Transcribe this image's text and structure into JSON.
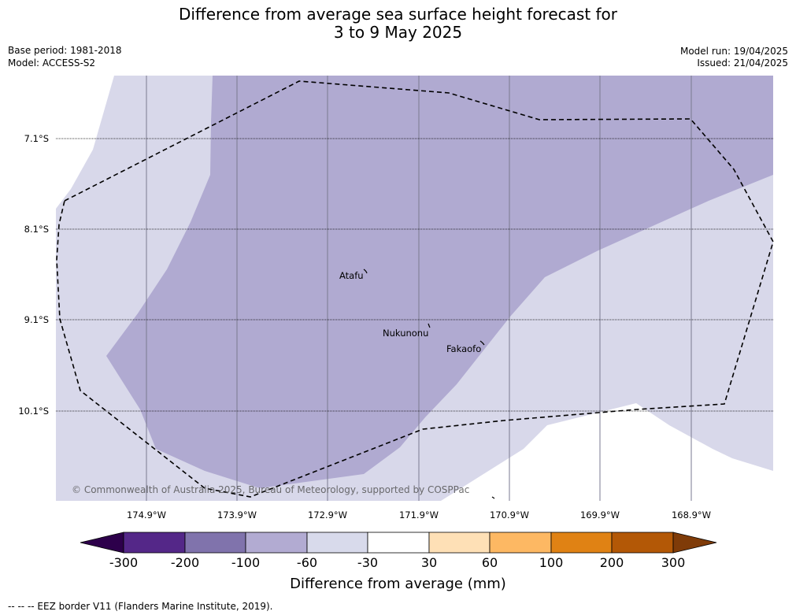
{
  "header": {
    "title_line1": "Difference from average sea surface height forecast for",
    "title_line2": "3 to 9 May 2025",
    "base_period": "Base period: 1981-2018",
    "model": "Model: ACCESS-S2",
    "model_run": "Model run: 19/04/2025",
    "issued": "Issued: 21/04/2025"
  },
  "map": {
    "latitudes": [
      "7.1°S",
      "8.1°S",
      "9.1°S",
      "10.1°S"
    ],
    "longitudes": [
      "174.9°W",
      "173.9°W",
      "172.9°W",
      "171.9°W",
      "170.9°W",
      "169.9°W",
      "168.9°W"
    ],
    "places": [
      {
        "name": "Atafu"
      },
      {
        "name": "Nukunonu"
      },
      {
        "name": "Fakaofo"
      }
    ],
    "copyright": "© Commonwealth of Australia 2025, Bureau of Meteorology, supported by COSPPac",
    "fill_colors": {
      "-100_to_-60": "#b0aad1",
      "-60_to_-30": "#d8d8ea",
      "-30_to_30": "#ffffff"
    }
  },
  "colorbar": {
    "label": "Difference from average (mm)",
    "ticks": [
      "-300",
      "-200",
      "-100",
      "-60",
      "-30",
      "30",
      "60",
      "100",
      "200",
      "300"
    ],
    "colors": [
      "#2d004b",
      "#542788",
      "#8073ac",
      "#b2abd2",
      "#d8daeb",
      "#ffffff",
      "#fee0b6",
      "#fdb863",
      "#e08214",
      "#b35806",
      "#7f3b08"
    ]
  },
  "legend": {
    "eez_line": "--  --  -- EEZ border V11 (Flanders Marine Institute, 2019)."
  }
}
